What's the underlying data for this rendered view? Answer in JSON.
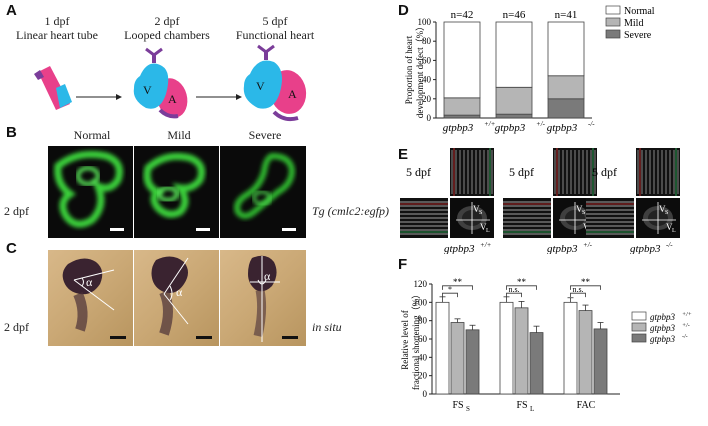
{
  "panel_a": {
    "label": "A",
    "stages": [
      {
        "day": "1 dpf",
        "desc": "Linear heart tube"
      },
      {
        "day": "2 dpf",
        "desc": "Looped chambers"
      },
      {
        "day": "5 dpf",
        "desc": "Functional heart"
      }
    ],
    "chamber_v": "V",
    "chamber_a": "A"
  },
  "panel_b": {
    "label": "B",
    "columns": [
      "Normal",
      "Mild",
      "Severe"
    ],
    "row_label": "2 dpf",
    "transgene": "Tg (cmlc2:egfp)"
  },
  "panel_c": {
    "label": "C",
    "row_label": "2 dpf",
    "method": "in situ",
    "angle_symbol": "α"
  },
  "panel_d": {
    "label": "D",
    "ylabel_line1": "Proportion of heart",
    "ylabel_line2": "development defect（%）",
    "yticks": [
      "0",
      "20",
      "40",
      "60",
      "80",
      "100"
    ],
    "n_labels": [
      "n=42",
      "n=46",
      "n=41"
    ],
    "genotypes": [
      "gtpbp3",
      "gtpbp3",
      "gtpbp3"
    ],
    "genotype_sup": [
      "+/+",
      "+/-",
      "-/-"
    ],
    "legend": [
      "Normal",
      "Mild",
      "Severe"
    ]
  },
  "panel_e": {
    "label": "E",
    "day_label": "5 dpf",
    "vs": "V",
    "vs_sub": "S",
    "vl": "V",
    "vl_sub": "L",
    "genotypes": [
      "gtpbp3",
      "gtpbp3",
      "gtpbp3"
    ],
    "genotype_sup": [
      "+/+",
      "+/-",
      "-/-"
    ]
  },
  "panel_f": {
    "label": "F",
    "ylabel_line1": "Relative level of",
    "ylabel_line2": "fractional shortening（%）",
    "yticks": [
      "0",
      "20",
      "40",
      "60",
      "80",
      "100",
      "120"
    ],
    "groups": [
      "FS",
      "FS",
      "FAC"
    ],
    "group_subs": [
      "S",
      "L",
      ""
    ],
    "sig_labels": [
      "**",
      "*",
      "**",
      "n.s.",
      "**",
      "n.s."
    ],
    "legend": [
      "gtpbp3",
      "gtpbp3",
      "gtpbp3"
    ],
    "legend_sup": [
      "+/+",
      "+/-",
      "-/-"
    ]
  },
  "chart_data": [
    {
      "type": "bar",
      "stacked": true,
      "categories": [
        "gtpbp3+/+",
        "gtpbp3+/-",
        "gtpbp3-/-"
      ],
      "series": [
        {
          "name": "Severe",
          "values": [
            3,
            4,
            20
          ],
          "color": "#7a7a7a"
        },
        {
          "name": "Mild",
          "values": [
            18,
            28,
            24
          ],
          "color": "#b5b5b5"
        },
        {
          "name": "Normal",
          "values": [
            79,
            68,
            56
          ],
          "color": "#ffffff"
        }
      ],
      "ylabel": "Proportion of heart development defect（%）",
      "ylim": [
        0,
        100
      ],
      "legend_position": "top-right"
    },
    {
      "type": "bar",
      "categories": [
        "FSS",
        "FSL",
        "FAC"
      ],
      "series": [
        {
          "name": "gtpbp3+/+",
          "values": [
            100,
            100,
            100
          ],
          "errors": [
            6,
            6,
            5
          ],
          "color": "#ffffff"
        },
        {
          "name": "gtpbp3+/-",
          "values": [
            78,
            94,
            91
          ],
          "errors": [
            4,
            7,
            6
          ],
          "color": "#b5b5b5"
        },
        {
          "name": "gtpbp3-/-",
          "values": [
            70,
            67,
            71
          ],
          "errors": [
            5,
            7,
            7
          ],
          "color": "#7a7a7a"
        }
      ],
      "ylabel": "Relative level of fractional shortening（%）",
      "ylim": [
        0,
        120
      ],
      "legend_position": "right"
    }
  ]
}
